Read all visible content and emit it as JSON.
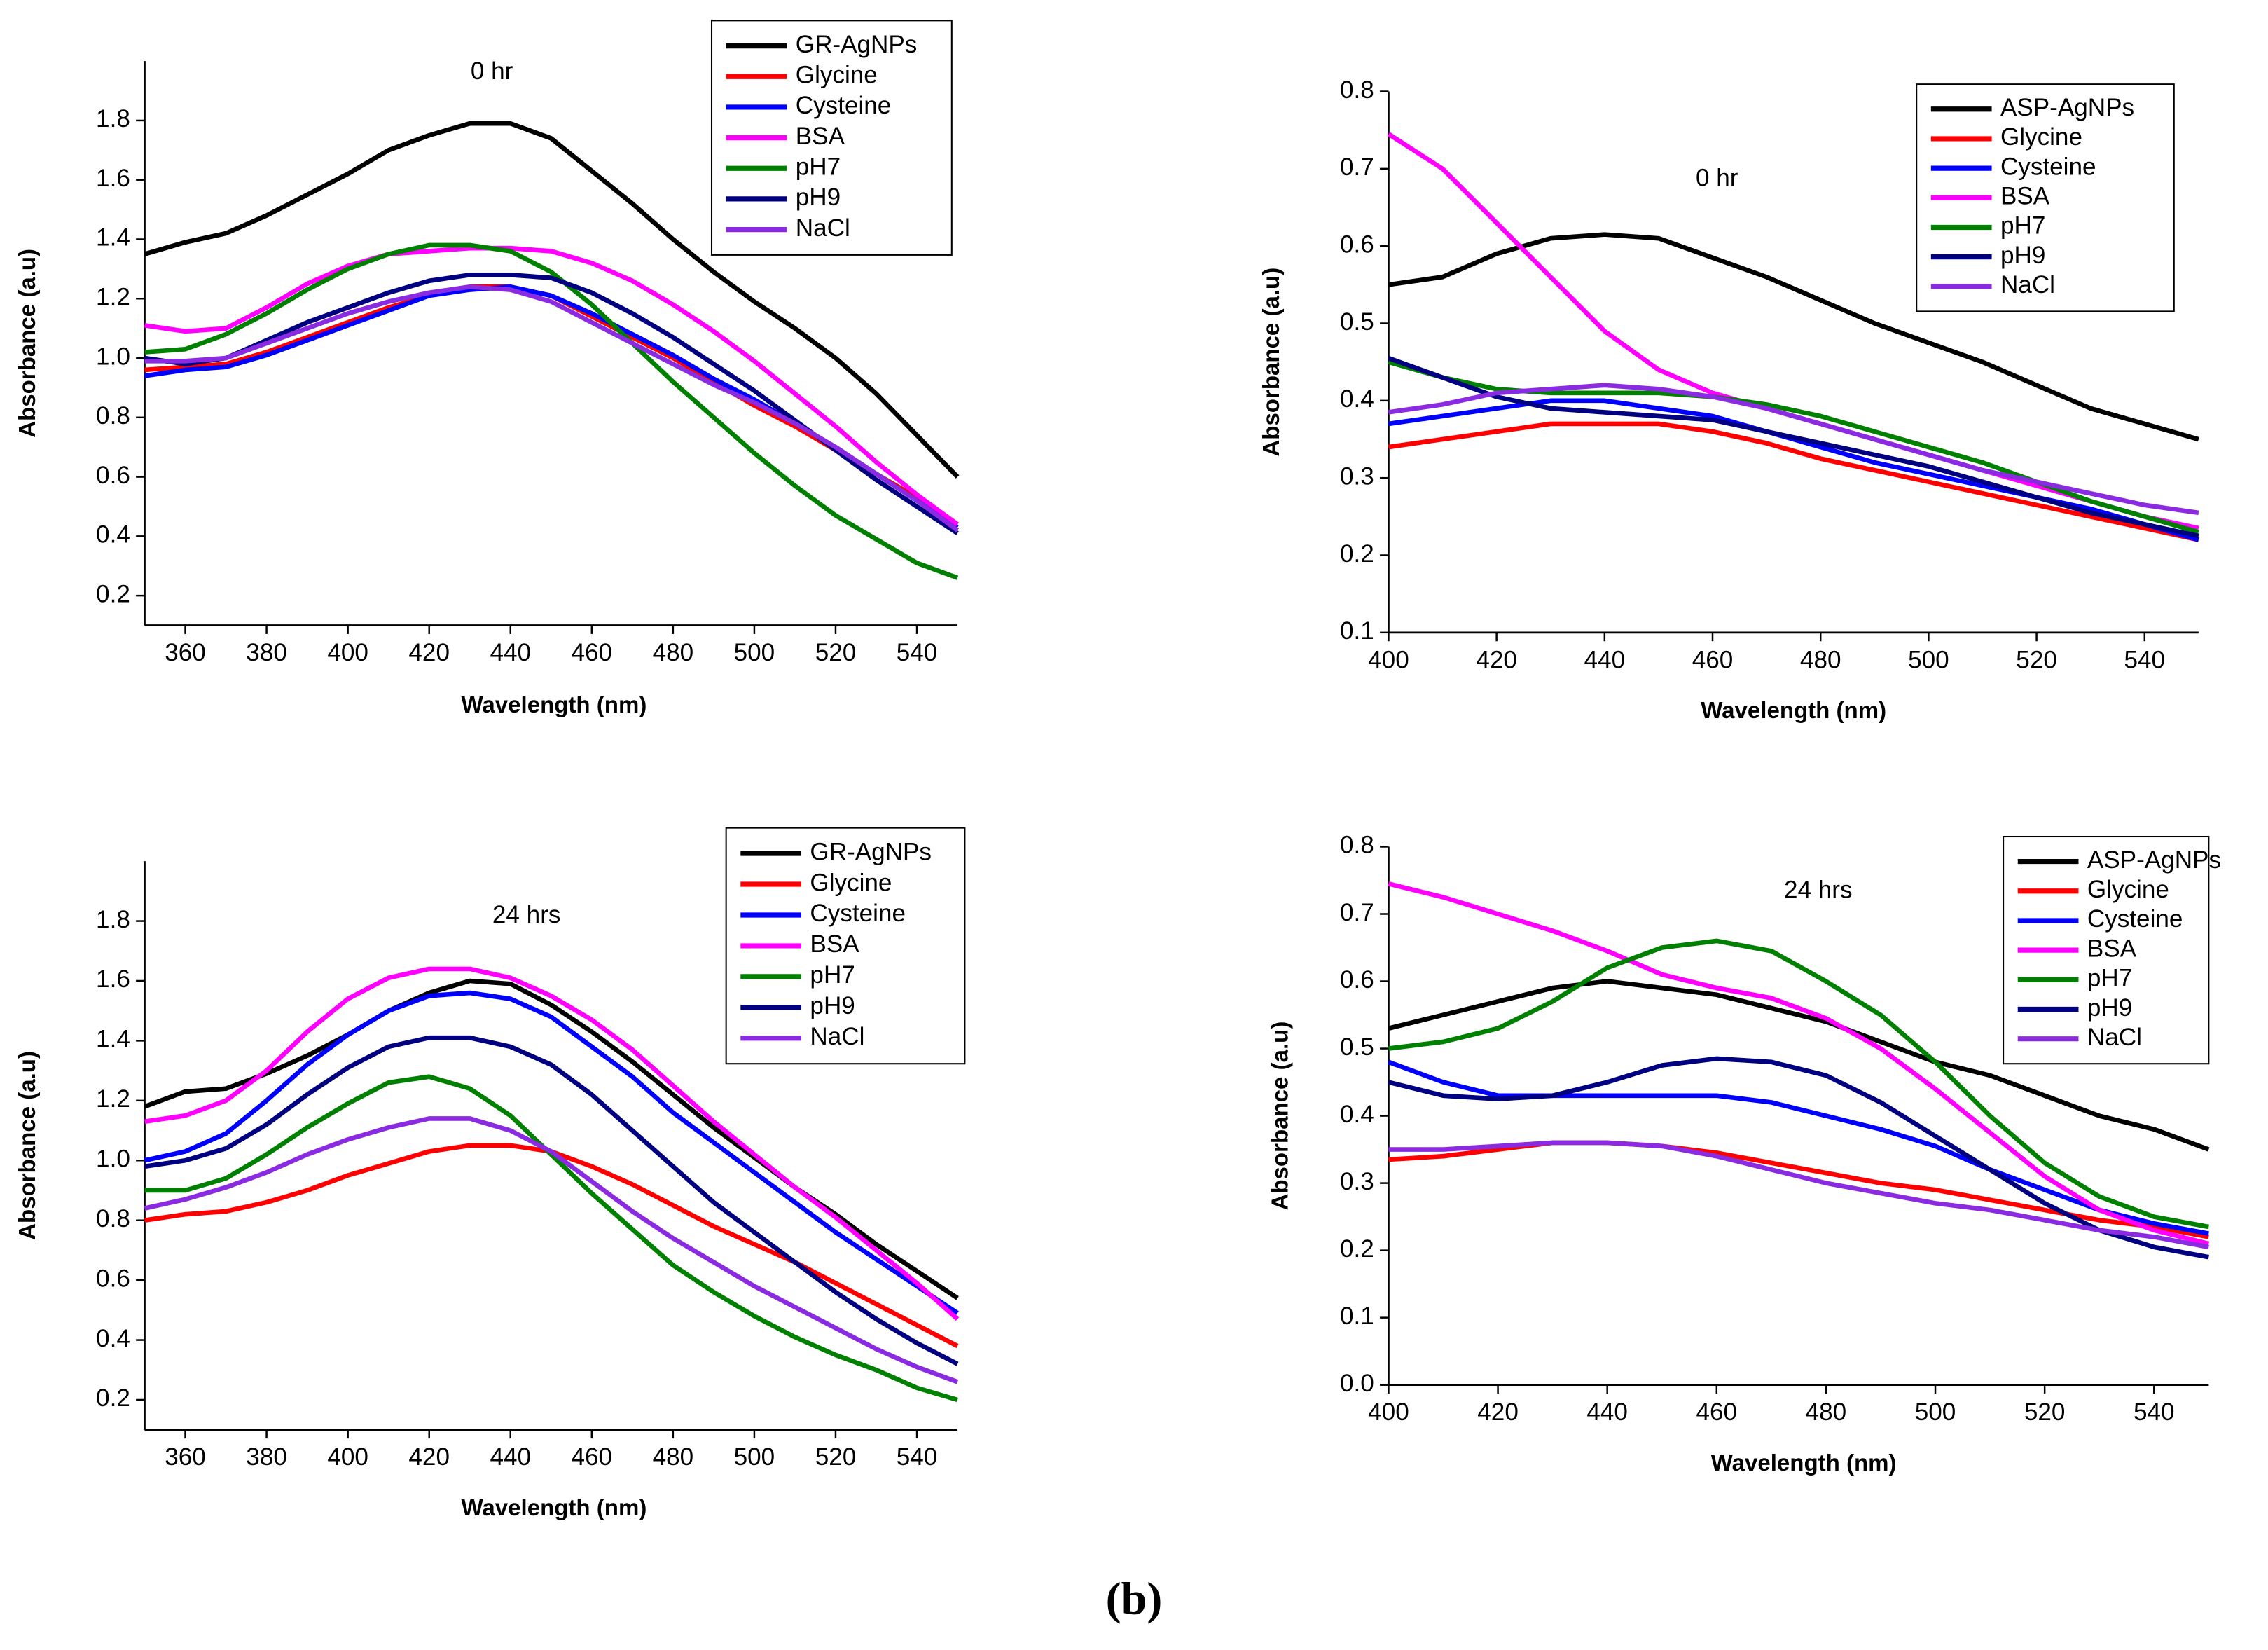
{
  "caption": "(b)",
  "chart_data": [
    {
      "type": "line",
      "title": "0 hr",
      "x_label": "Wavelength (nm)",
      "y_label": "Absorbance (a.u)",
      "x": [
        350,
        360,
        370,
        380,
        390,
        400,
        410,
        420,
        430,
        440,
        450,
        460,
        470,
        480,
        490,
        500,
        510,
        520,
        530,
        540,
        550
      ],
      "xlim": [
        350,
        550
      ],
      "xticks": [
        360,
        380,
        400,
        420,
        440,
        460,
        480,
        500,
        520,
        540
      ],
      "ylim": [
        0.1,
        2.0
      ],
      "yticks": [
        0.2,
        0.4,
        0.6,
        0.8,
        {
          "value": 1.0,
          "label": "1.0"
        },
        1.2,
        1.4,
        1.6,
        1.8
      ],
      "series": [
        {
          "name": "GR-AgNPs",
          "color": "#000000",
          "values": [
            1.35,
            1.39,
            1.42,
            1.48,
            1.55,
            1.62,
            1.7,
            1.75,
            1.79,
            1.79,
            1.74,
            1.63,
            1.52,
            1.4,
            1.29,
            1.19,
            1.1,
            1.0,
            0.88,
            0.74,
            0.6
          ]
        },
        {
          "name": "Glycine",
          "color": "#ff0000",
          "values": [
            0.96,
            0.97,
            0.98,
            1.02,
            1.07,
            1.12,
            1.17,
            1.21,
            1.24,
            1.24,
            1.21,
            1.14,
            1.07,
            1.0,
            0.92,
            0.84,
            0.77,
            0.69,
            0.61,
            0.53,
            0.44
          ]
        },
        {
          "name": "Cysteine",
          "color": "#0000ff",
          "values": [
            0.94,
            0.96,
            0.97,
            1.01,
            1.06,
            1.11,
            1.16,
            1.21,
            1.23,
            1.24,
            1.21,
            1.15,
            1.08,
            1.01,
            0.93,
            0.86,
            0.78,
            0.7,
            0.61,
            0.52,
            0.43
          ]
        },
        {
          "name": "BSA",
          "color": "#ff00ff",
          "values": [
            1.11,
            1.09,
            1.1,
            1.17,
            1.25,
            1.31,
            1.35,
            1.36,
            1.37,
            1.37,
            1.36,
            1.32,
            1.26,
            1.18,
            1.09,
            0.99,
            0.88,
            0.77,
            0.65,
            0.54,
            0.44
          ]
        },
        {
          "name": "pH7",
          "color": "#008000",
          "values": [
            1.02,
            1.03,
            1.08,
            1.15,
            1.23,
            1.3,
            1.35,
            1.38,
            1.38,
            1.36,
            1.29,
            1.18,
            1.05,
            0.92,
            0.8,
            0.68,
            0.57,
            0.47,
            0.39,
            0.31,
            0.26
          ]
        },
        {
          "name": "pH9",
          "color": "#000080",
          "values": [
            1.0,
            0.98,
            1.0,
            1.06,
            1.12,
            1.17,
            1.22,
            1.26,
            1.28,
            1.28,
            1.27,
            1.22,
            1.15,
            1.07,
            0.98,
            0.89,
            0.79,
            0.69,
            0.59,
            0.5,
            0.41
          ]
        },
        {
          "name": "NaCl",
          "color": "#8a2be2",
          "values": [
            0.99,
            0.99,
            1.0,
            1.05,
            1.1,
            1.15,
            1.19,
            1.22,
            1.24,
            1.23,
            1.19,
            1.12,
            1.05,
            0.98,
            0.91,
            0.85,
            0.78,
            0.7,
            0.61,
            0.52,
            0.42
          ]
        }
      ]
    },
    {
      "type": "line",
      "title": "0 hr",
      "x_label": "Wavelength (nm)",
      "y_label": "Absorbance (a.u)",
      "x": [
        400,
        410,
        420,
        430,
        440,
        450,
        460,
        470,
        480,
        490,
        500,
        510,
        520,
        530,
        540,
        550
      ],
      "xlim": [
        400,
        550
      ],
      "xticks": [
        400,
        420,
        440,
        460,
        480,
        500,
        520,
        540
      ],
      "ylim": [
        0.1,
        0.8
      ],
      "yticks": [
        0.1,
        0.2,
        0.3,
        0.4,
        0.5,
        0.6,
        0.7,
        0.8
      ],
      "series": [
        {
          "name": "ASP-AgNPs",
          "color": "#000000",
          "values": [
            0.55,
            0.56,
            0.59,
            0.61,
            0.615,
            0.61,
            0.585,
            0.56,
            0.53,
            0.5,
            0.475,
            0.45,
            0.42,
            0.39,
            0.37,
            0.35
          ]
        },
        {
          "name": "Glycine",
          "color": "#ff0000",
          "values": [
            0.34,
            0.35,
            0.36,
            0.37,
            0.37,
            0.37,
            0.36,
            0.345,
            0.325,
            0.31,
            0.295,
            0.28,
            0.265,
            0.25,
            0.235,
            0.22
          ]
        },
        {
          "name": "Cysteine",
          "color": "#0000ff",
          "values": [
            0.37,
            0.38,
            0.39,
            0.4,
            0.4,
            0.39,
            0.38,
            0.36,
            0.34,
            0.32,
            0.305,
            0.29,
            0.275,
            0.26,
            0.24,
            0.22
          ]
        },
        {
          "name": "BSA",
          "color": "#ff00ff",
          "values": [
            0.745,
            0.7,
            0.63,
            0.56,
            0.49,
            0.44,
            0.41,
            0.39,
            0.37,
            0.35,
            0.33,
            0.31,
            0.29,
            0.27,
            0.25,
            0.235
          ]
        },
        {
          "name": "pH7",
          "color": "#008000",
          "values": [
            0.45,
            0.43,
            0.415,
            0.41,
            0.41,
            0.41,
            0.405,
            0.395,
            0.38,
            0.36,
            0.34,
            0.32,
            0.295,
            0.27,
            0.25,
            0.23
          ]
        },
        {
          "name": "pH9",
          "color": "#000080",
          "values": [
            0.455,
            0.43,
            0.405,
            0.39,
            0.385,
            0.38,
            0.375,
            0.36,
            0.345,
            0.33,
            0.315,
            0.295,
            0.275,
            0.255,
            0.24,
            0.225
          ]
        },
        {
          "name": "NaCl",
          "color": "#8a2be2",
          "values": [
            0.385,
            0.395,
            0.41,
            0.415,
            0.42,
            0.415,
            0.405,
            0.39,
            0.37,
            0.35,
            0.33,
            0.31,
            0.295,
            0.28,
            0.265,
            0.255
          ]
        }
      ]
    },
    {
      "type": "line",
      "title": "24 hrs",
      "x_label": "Wavelength (nm)",
      "y_label": "Absorbance (a.u)",
      "x": [
        350,
        360,
        370,
        380,
        390,
        400,
        410,
        420,
        430,
        440,
        450,
        460,
        470,
        480,
        490,
        500,
        510,
        520,
        530,
        540,
        550
      ],
      "xlim": [
        350,
        550
      ],
      "xticks": [
        360,
        380,
        400,
        420,
        440,
        460,
        480,
        500,
        520,
        540
      ],
      "ylim": [
        0.1,
        2.0
      ],
      "yticks": [
        0.2,
        0.4,
        0.6,
        0.8,
        {
          "value": 1.0,
          "label": "1.0"
        },
        1.2,
        1.4,
        1.6,
        1.8
      ],
      "series": [
        {
          "name": "GR-AgNPs",
          "color": "#000000",
          "values": [
            1.18,
            1.23,
            1.24,
            1.29,
            1.35,
            1.42,
            1.5,
            1.56,
            1.6,
            1.59,
            1.52,
            1.43,
            1.33,
            1.22,
            1.11,
            1.01,
            0.91,
            0.82,
            0.72,
            0.63,
            0.54
          ]
        },
        {
          "name": "Glycine",
          "color": "#ff0000",
          "values": [
            0.8,
            0.82,
            0.83,
            0.86,
            0.9,
            0.95,
            0.99,
            1.03,
            1.05,
            1.05,
            1.03,
            0.98,
            0.92,
            0.85,
            0.78,
            0.72,
            0.66,
            0.59,
            0.52,
            0.45,
            0.38
          ]
        },
        {
          "name": "Cysteine",
          "color": "#0000ff",
          "values": [
            1.0,
            1.03,
            1.09,
            1.2,
            1.32,
            1.42,
            1.5,
            1.55,
            1.56,
            1.54,
            1.48,
            1.38,
            1.28,
            1.16,
            1.06,
            0.96,
            0.86,
            0.76,
            0.67,
            0.58,
            0.49
          ]
        },
        {
          "name": "BSA",
          "color": "#ff00ff",
          "values": [
            1.13,
            1.15,
            1.2,
            1.3,
            1.43,
            1.54,
            1.61,
            1.64,
            1.64,
            1.61,
            1.55,
            1.47,
            1.37,
            1.25,
            1.13,
            1.02,
            0.91,
            0.81,
            0.7,
            0.59,
            0.47
          ]
        },
        {
          "name": "pH7",
          "color": "#008000",
          "values": [
            0.9,
            0.9,
            0.94,
            1.02,
            1.11,
            1.19,
            1.26,
            1.28,
            1.24,
            1.15,
            1.02,
            0.89,
            0.77,
            0.65,
            0.56,
            0.48,
            0.41,
            0.35,
            0.3,
            0.24,
            0.2
          ]
        },
        {
          "name": "pH9",
          "color": "#000080",
          "values": [
            0.98,
            1.0,
            1.04,
            1.12,
            1.22,
            1.31,
            1.38,
            1.41,
            1.41,
            1.38,
            1.32,
            1.22,
            1.1,
            0.98,
            0.86,
            0.76,
            0.66,
            0.56,
            0.47,
            0.39,
            0.32
          ]
        },
        {
          "name": "NaCl",
          "color": "#8a2be2",
          "values": [
            0.84,
            0.87,
            0.91,
            0.96,
            1.02,
            1.07,
            1.11,
            1.14,
            1.14,
            1.1,
            1.03,
            0.93,
            0.83,
            0.74,
            0.66,
            0.58,
            0.51,
            0.44,
            0.37,
            0.31,
            0.26
          ]
        }
      ]
    },
    {
      "type": "line",
      "title": "24 hrs",
      "x_label": "Wavelength (nm)",
      "y_label": "Absorbance (a.u)",
      "x": [
        400,
        410,
        420,
        430,
        440,
        450,
        460,
        470,
        480,
        490,
        500,
        510,
        520,
        530,
        540,
        550
      ],
      "xlim": [
        400,
        550
      ],
      "xticks": [
        400,
        420,
        440,
        460,
        480,
        500,
        520,
        540
      ],
      "ylim": [
        0.0,
        0.8
      ],
      "yticks": [
        {
          "value": 0.0,
          "label": "0.0"
        },
        0.1,
        0.2,
        0.3,
        0.4,
        0.5,
        0.6,
        0.7,
        0.8
      ],
      "series": [
        {
          "name": "ASP-AgNPs",
          "color": "#000000",
          "values": [
            0.53,
            0.55,
            0.57,
            0.59,
            0.6,
            0.59,
            0.58,
            0.56,
            0.54,
            0.51,
            0.48,
            0.46,
            0.43,
            0.4,
            0.38,
            0.35
          ]
        },
        {
          "name": "Glycine",
          "color": "#ff0000",
          "values": [
            0.335,
            0.34,
            0.35,
            0.36,
            0.36,
            0.355,
            0.345,
            0.33,
            0.315,
            0.3,
            0.29,
            0.275,
            0.26,
            0.245,
            0.235,
            0.22
          ]
        },
        {
          "name": "Cysteine",
          "color": "#0000ff",
          "values": [
            0.48,
            0.45,
            0.43,
            0.43,
            0.43,
            0.43,
            0.43,
            0.42,
            0.4,
            0.38,
            0.355,
            0.32,
            0.29,
            0.26,
            0.24,
            0.225
          ]
        },
        {
          "name": "BSA",
          "color": "#ff00ff",
          "values": [
            0.745,
            0.725,
            0.7,
            0.675,
            0.645,
            0.61,
            0.59,
            0.575,
            0.545,
            0.5,
            0.44,
            0.375,
            0.31,
            0.26,
            0.23,
            0.21
          ]
        },
        {
          "name": "pH7",
          "color": "#008000",
          "values": [
            0.5,
            0.51,
            0.53,
            0.57,
            0.62,
            0.65,
            0.66,
            0.645,
            0.6,
            0.55,
            0.48,
            0.4,
            0.33,
            0.28,
            0.25,
            0.235
          ]
        },
        {
          "name": "pH9",
          "color": "#000080",
          "values": [
            0.45,
            0.43,
            0.425,
            0.43,
            0.45,
            0.475,
            0.485,
            0.48,
            0.46,
            0.42,
            0.37,
            0.32,
            0.27,
            0.23,
            0.205,
            0.19
          ]
        },
        {
          "name": "NaCl",
          "color": "#8a2be2",
          "values": [
            0.35,
            0.35,
            0.355,
            0.36,
            0.36,
            0.355,
            0.34,
            0.32,
            0.3,
            0.285,
            0.27,
            0.26,
            0.245,
            0.23,
            0.22,
            0.205
          ]
        }
      ]
    }
  ]
}
